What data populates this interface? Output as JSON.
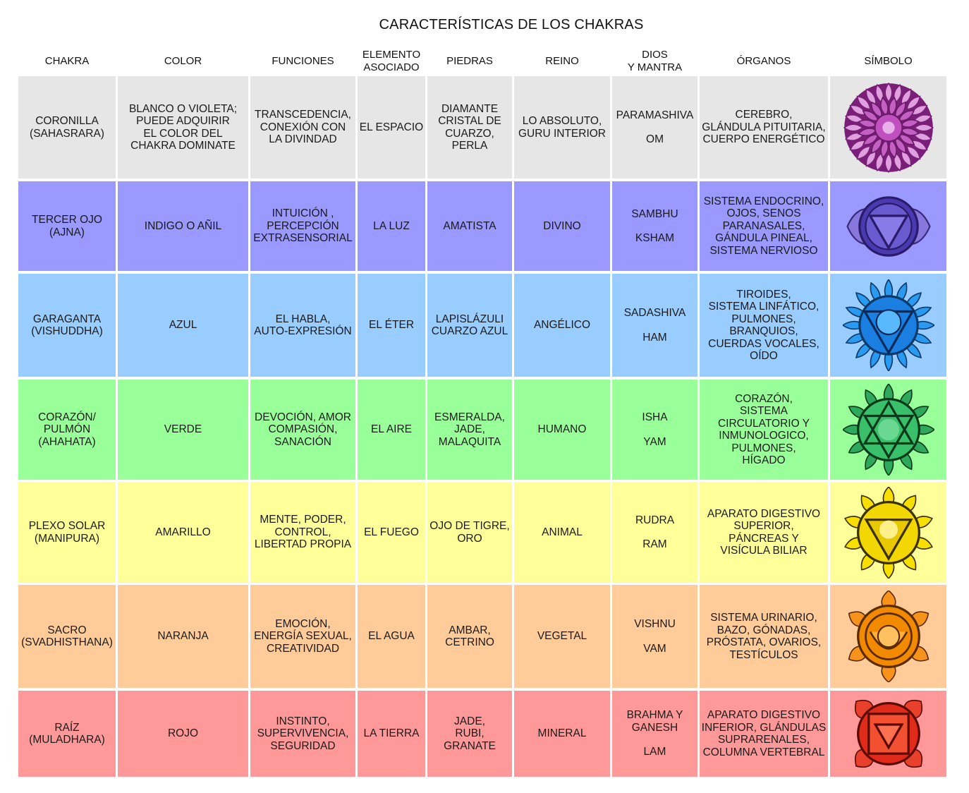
{
  "title": "CARACTERÍSTICAS DE LOS CHAKRAS",
  "headers": {
    "chakra": [
      "CHAKRA"
    ],
    "color": [
      "COLOR"
    ],
    "funciones": [
      "FUNCIONES"
    ],
    "elemento": [
      "ELEMENTO",
      "ASOCIADO"
    ],
    "piedras": [
      "PIEDRAS"
    ],
    "reino": [
      "REINO"
    ],
    "dios": [
      "DIOS",
      "Y MANTRA"
    ],
    "organos": [
      "ÓRGANOS"
    ],
    "simbolo": [
      "SÍMBOLO"
    ]
  },
  "rows": [
    {
      "bg": "#e6e6e6",
      "chakra": [
        "CORONILLA",
        "(SAHASRARA)"
      ],
      "color": [
        "BLANCO O VIOLETA;",
        "PUEDE ADQUIRIR",
        "EL COLOR DEL",
        "CHAKRA DOMINATE"
      ],
      "funciones": [
        "TRANSCEDENCIA,",
        "CONEXIÓN CON",
        "LA DIVINDAD"
      ],
      "elemento": [
        "EL ESPACIO"
      ],
      "piedras": [
        "DIAMANTE",
        "CRISTAL DE",
        "CUARZO,",
        "PERLA"
      ],
      "reino": [
        "LO ABSOLUTO,",
        "GURU INTERIOR"
      ],
      "dios": "PARAMASHIVA",
      "mantra": "OM",
      "organos": [
        "CEREBRO,",
        "GLÁNDULA PITUITARIA,",
        "CUERPO ENERGÉTICO"
      ],
      "symbol": "crown-chakra-icon",
      "symbol_color": "#b23fb0"
    },
    {
      "bg": "#9999ff",
      "chakra": [
        "TERCER OJO",
        "(AJNA)"
      ],
      "color": [
        "INDIGO O AÑIL"
      ],
      "funciones": [
        "INTUICIÓN ,",
        "PERCEPCIÓN",
        "EXTRASENSORIAL"
      ],
      "elemento": [
        "LA LUZ"
      ],
      "piedras": [
        "AMATISTA"
      ],
      "reino": [
        "DIVINO"
      ],
      "dios": "SAMBHU",
      "mantra": "KSHAM",
      "organos": [
        "SISTEMA ENDOCRINO,",
        "OJOS, SENOS",
        "PARANASALES,",
        "GÁNDULA PINEAL,",
        "SISTEMA NERVIOSO"
      ],
      "symbol": "third-eye-chakra-icon",
      "symbol_color": "#5a3fb0"
    },
    {
      "bg": "#99ccff",
      "chakra": [
        "GARAGANTA",
        "(VISHUDDHA)"
      ],
      "color": [
        "AZUL"
      ],
      "funciones": [
        "EL HABLA,",
        "AUTO-EXPRESIÓN"
      ],
      "elemento": [
        "EL ÉTER"
      ],
      "piedras": [
        "LAPISLÁZULI",
        "CUARZO AZUL"
      ],
      "reino": [
        "ANGÉLICO"
      ],
      "dios": "SADASHIVA",
      "mantra": "HAM",
      "organos": [
        "TIROIDES,",
        "SISTEMA LINFÁTICO,",
        "PULMONES,",
        "BRANQUIOS,",
        "CUERDAS VOCALES,",
        "OÍDO"
      ],
      "symbol": "throat-chakra-icon",
      "symbol_color": "#1a7fe0"
    },
    {
      "bg": "#99ff99",
      "chakra": [
        "CORAZÓN/",
        "PULMÓN",
        "(AHAHATA)"
      ],
      "color": [
        "VERDE"
      ],
      "funciones": [
        "DEVOCIÓN, AMOR",
        "COMPASIÓN,",
        "SANACIÓN"
      ],
      "elemento": [
        "EL AIRE"
      ],
      "piedras": [
        "ESMERALDA,",
        "JADE,",
        "MALAQUITA"
      ],
      "reino": [
        "HUMANO"
      ],
      "dios": "ISHA",
      "mantra": "YAM",
      "organos": [
        "CORAZÓN,",
        "SISTEMA",
        "CIRCULATORIO Y",
        "INMUNOLOGICO,",
        "PULMONES,",
        "HÍGADO"
      ],
      "symbol": "heart-chakra-icon",
      "symbol_color": "#2ea85a"
    },
    {
      "bg": "#ffff99",
      "chakra": [
        "PLEXO SOLAR",
        "(MANIPURA)"
      ],
      "color": [
        "AMARILLO"
      ],
      "funciones": [
        "MENTE, PODER,",
        "CONTROL,",
        "LIBERTAD PROPIA"
      ],
      "elemento": [
        "EL FUEGO"
      ],
      "piedras": [
        "OJO DE TIGRE,",
        "ORO"
      ],
      "reino": [
        "ANIMAL"
      ],
      "dios": "RUDRA",
      "mantra": "RAM",
      "organos": [
        "APARATO DIGESTIVO",
        "SUPERIOR,",
        "PÁNCREAS Y",
        "VISÍCULA BILIAR"
      ],
      "symbol": "solar-plexus-chakra-icon",
      "symbol_color": "#f2d800"
    },
    {
      "bg": "#ffcc99",
      "chakra": [
        "SACRO",
        "(SVADHISTHANA)"
      ],
      "color": [
        "NARANJA"
      ],
      "funciones": [
        "EMOCIÓN,",
        "ENERGÍA SEXUAL,",
        "CREATIVIDAD"
      ],
      "elemento": [
        "EL AGUA"
      ],
      "piedras": [
        "AMBAR,",
        "CETRINO"
      ],
      "reino": [
        "VEGETAL"
      ],
      "dios": "VISHNU",
      "mantra": "VAM",
      "organos": [
        "SISTEMA URINARIO,",
        "BAZO, GÓNADAS,",
        "PRÓSTATA, OVARIOS,",
        "TESTÍCULOS"
      ],
      "symbol": "sacral-chakra-icon",
      "symbol_color": "#f28a00"
    },
    {
      "bg": "#ff9999",
      "chakra": [
        "RAÍZ",
        "(MULADHARA)"
      ],
      "color": [
        "ROJO"
      ],
      "funciones": [
        "INSTINTO,",
        "SUPERVIVENCIA,",
        "SEGURIDAD"
      ],
      "elemento": [
        "LA TIERRA"
      ],
      "piedras": [
        "JADE,",
        "RUBI,",
        "GRANATE"
      ],
      "reino": [
        "MINERAL"
      ],
      "dios": "BRAHMA Y\nGANESH",
      "mantra": "LAM",
      "organos": [
        "APARATO DIGESTIVO",
        "INFERIOR, GLÁNDULAS",
        "SUPRARENALES,",
        "COLUMNA VERTEBRAL"
      ],
      "symbol": "root-chakra-icon",
      "symbol_color": "#e02a1a"
    }
  ]
}
